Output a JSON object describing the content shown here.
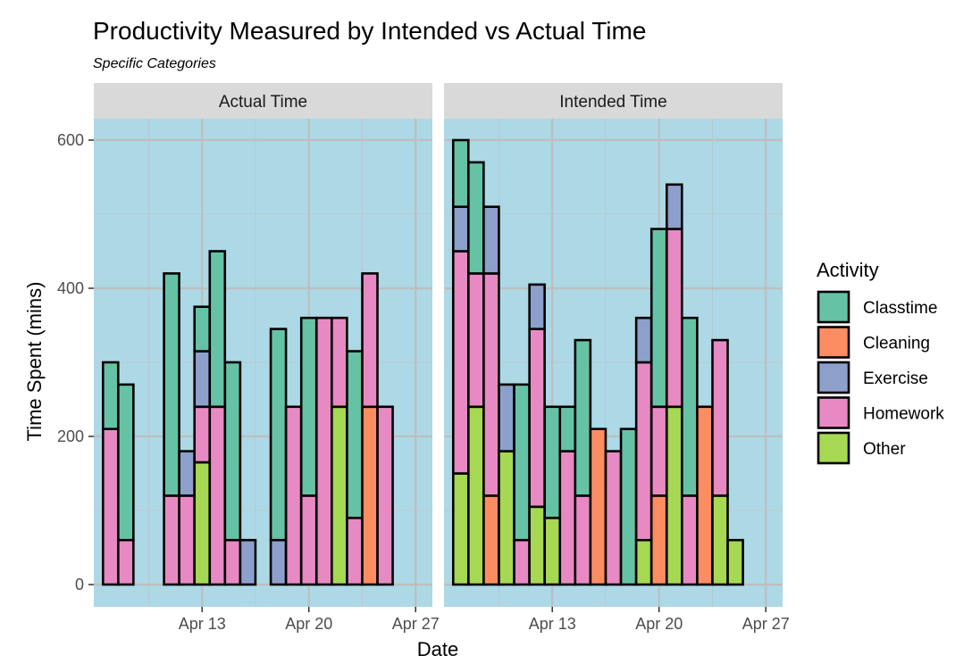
{
  "chart_data": {
    "type": "bar",
    "stacked": true,
    "title": "Productivity Measured by Intended vs Actual Time",
    "subtitle": "Specific Categories",
    "xlabel": "Date",
    "ylabel": "Time Spent (mins)",
    "ylim": [
      -30,
      630
    ],
    "y_ticks": [
      0,
      200,
      400,
      600
    ],
    "x_ticks": [
      "Apr 13",
      "Apr 20",
      "Apr 27"
    ],
    "grid": true,
    "legend": {
      "title": "Activity",
      "position": "right",
      "entries": [
        "Classtime",
        "Cleaning",
        "Exercise",
        "Homework",
        "Other"
      ]
    },
    "colors": {
      "Classtime": "#66c2a5",
      "Cleaning": "#fc8d62",
      "Exercise": "#8da0cb",
      "Homework": "#e78ac3",
      "Other": "#a6d854",
      "panel_bg": "#add8e6",
      "strip_bg": "#d9d9d9",
      "grid": "#bebebe"
    },
    "stack_order": [
      "Other",
      "Cleaning",
      "Homework",
      "Exercise",
      "Classtime"
    ],
    "panels": [
      {
        "name": "Actual Time",
        "bars": [
          {
            "date": "Apr 7",
            "segments": {
              "Homework": 210,
              "Classtime": 90
            }
          },
          {
            "date": "Apr 8",
            "segments": {
              "Homework": 60,
              "Classtime": 210
            }
          },
          {
            "date": "Apr 11",
            "segments": {
              "Homework": 120,
              "Classtime": 300
            }
          },
          {
            "date": "Apr 12",
            "segments": {
              "Homework": 120,
              "Exercise": 60
            }
          },
          {
            "date": "Apr 13",
            "segments": {
              "Other": 165,
              "Homework": 75,
              "Exercise": 75,
              "Classtime": 60
            }
          },
          {
            "date": "Apr 14",
            "segments": {
              "Homework": 240,
              "Classtime": 210
            }
          },
          {
            "date": "Apr 15",
            "segments": {
              "Homework": 60,
              "Classtime": 240
            }
          },
          {
            "date": "Apr 16",
            "segments": {
              "Exercise": 60
            }
          },
          {
            "date": "Apr 18",
            "segments": {
              "Exercise": 60,
              "Classtime": 285
            }
          },
          {
            "date": "Apr 19",
            "segments": {
              "Homework": 240
            }
          },
          {
            "date": "Apr 20",
            "segments": {
              "Homework": 120,
              "Classtime": 240
            }
          },
          {
            "date": "Apr 21",
            "segments": {
              "Homework": 360
            }
          },
          {
            "date": "Apr 22",
            "segments": {
              "Other": 240,
              "Homework": 120
            }
          },
          {
            "date": "Apr 23",
            "segments": {
              "Homework": 90,
              "Classtime": 225
            }
          },
          {
            "date": "Apr 24",
            "segments": {
              "Homework": 180,
              "Cleaning": 240
            }
          },
          {
            "date": "Apr 25",
            "segments": {
              "Homework": 240
            }
          }
        ]
      },
      {
        "name": "Intended Time",
        "bars": [
          {
            "date": "Apr 7",
            "segments": {
              "Other": 150,
              "Homework": 300,
              "Exercise": 60,
              "Classtime": 90
            }
          },
          {
            "date": "Apr 8",
            "segments": {
              "Other": 240,
              "Homework": 180,
              "Classtime": 150
            }
          },
          {
            "date": "Apr 9",
            "segments": {
              "Homework": 300,
              "Exercise": 90,
              "Cleaning": 120
            }
          },
          {
            "date": "Apr 10",
            "segments": {
              "Other": 180,
              "Exercise": 90
            }
          },
          {
            "date": "Apr 11",
            "segments": {
              "Homework": 60,
              "Classtime": 210
            }
          },
          {
            "date": "Apr 12",
            "segments": {
              "Other": 105,
              "Homework": 240,
              "Exercise": 60
            }
          },
          {
            "date": "Apr 13",
            "segments": {
              "Other": 90,
              "Classtime": 150
            }
          },
          {
            "date": "Apr 14",
            "segments": {
              "Homework": 180,
              "Classtime": 60
            }
          },
          {
            "date": "Apr 15",
            "segments": {
              "Homework": 120,
              "Classtime": 210
            }
          },
          {
            "date": "Apr 16",
            "segments": {
              "Cleaning": 210
            }
          },
          {
            "date": "Apr 17",
            "segments": {
              "Homework": 180
            }
          },
          {
            "date": "Apr 18",
            "segments": {
              "Classtime": 210
            }
          },
          {
            "date": "Apr 19",
            "segments": {
              "Other": 60,
              "Homework": 240,
              "Exercise": 60
            }
          },
          {
            "date": "Apr 20",
            "segments": {
              "Homework": 120,
              "Cleaning": 120,
              "Classtime": 240
            }
          },
          {
            "date": "Apr 21",
            "segments": {
              "Other": 240,
              "Homework": 240,
              "Exercise": 60
            }
          },
          {
            "date": "Apr 22",
            "segments": {
              "Homework": 120,
              "Classtime": 240
            }
          },
          {
            "date": "Apr 23",
            "segments": {
              "Cleaning": 240
            }
          },
          {
            "date": "Apr 24",
            "segments": {
              "Other": 120,
              "Homework": 210
            }
          },
          {
            "date": "Apr 25",
            "segments": {
              "Other": 60
            }
          }
        ]
      }
    ]
  }
}
